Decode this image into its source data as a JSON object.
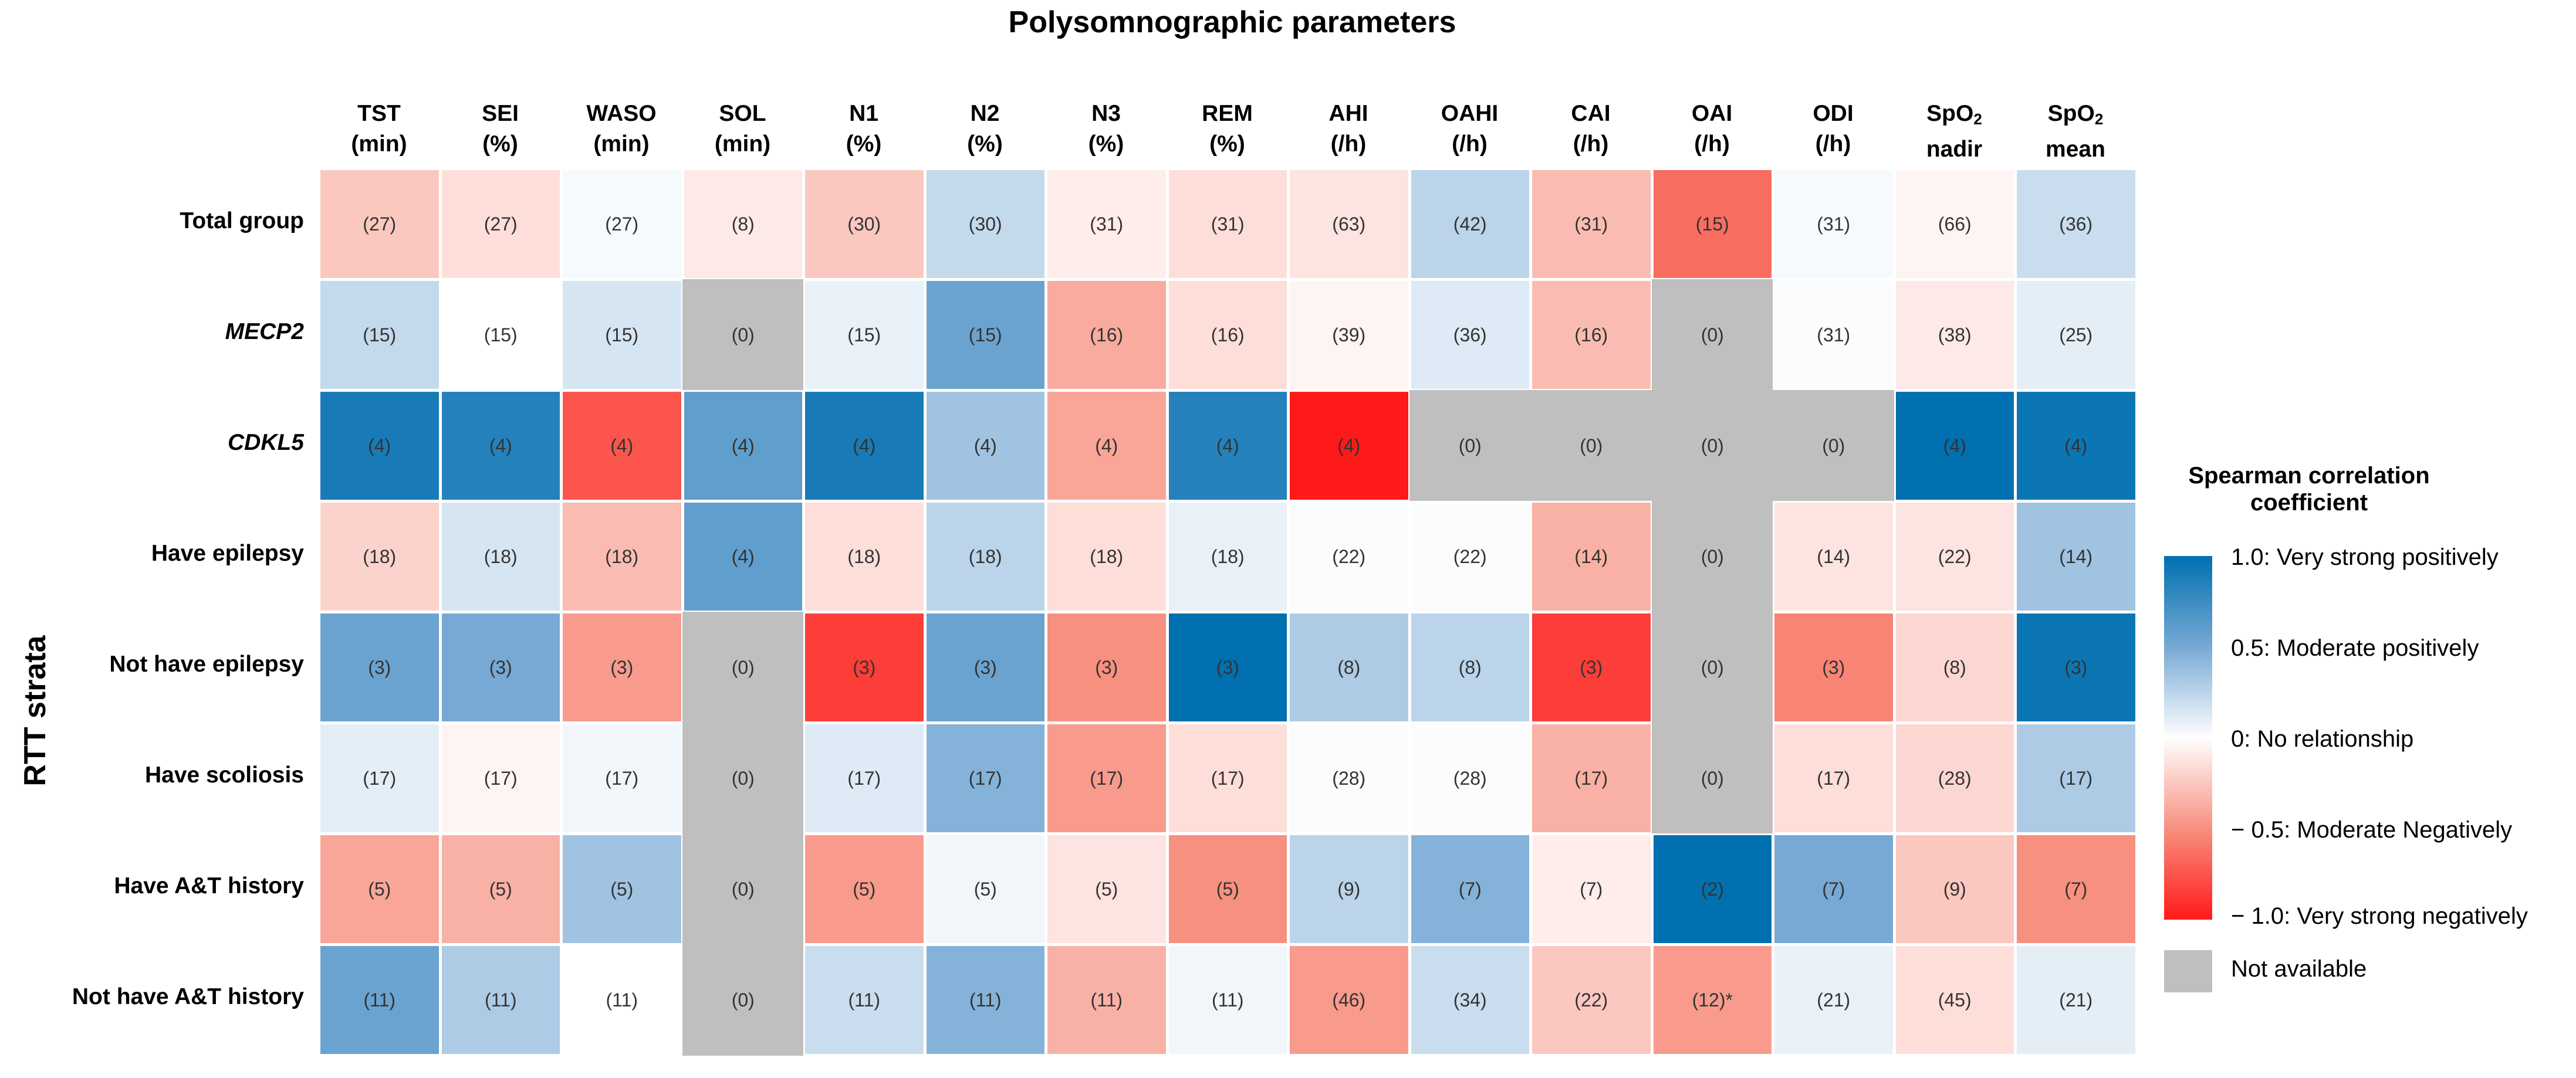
{
  "chart_data": {
    "type": "heatmap",
    "title": "Polysomnographic parameters",
    "ylabel": "RTT strata",
    "columns": [
      {
        "line1": "TST",
        "line2": "(min)"
      },
      {
        "line1": "SEI",
        "line2": "(%)"
      },
      {
        "line1": "WASO",
        "line2": "(min)"
      },
      {
        "line1": "SOL",
        "line2": "(min)"
      },
      {
        "line1": "N1",
        "line2": "(%)"
      },
      {
        "line1": "N2",
        "line2": "(%)"
      },
      {
        "line1": "N3",
        "line2": "(%)"
      },
      {
        "line1": "REM",
        "line2": "(%)"
      },
      {
        "line1": "AHI",
        "line2": "(/h)"
      },
      {
        "line1": "OAHI",
        "line2": "(/h)"
      },
      {
        "line1": "CAI",
        "line2": "(/h)"
      },
      {
        "line1": "OAI",
        "line2": "(/h)"
      },
      {
        "line1": "ODI",
        "line2": "(/h)"
      },
      {
        "line1": "SpO",
        "sub": "2",
        "line2": "nadir"
      },
      {
        "line1": "SpO",
        "sub": "2",
        "line2": "mean"
      }
    ],
    "rows": [
      {
        "label": "Total group",
        "italic": false
      },
      {
        "label": "MECP2",
        "italic": true
      },
      {
        "label": "CDKL5",
        "italic": true
      },
      {
        "label": "Have epilepsy",
        "italic": false
      },
      {
        "label": "Not have epilepsy",
        "italic": false
      },
      {
        "label": "Have scoliosis",
        "italic": false
      },
      {
        "label": "Have A&T history",
        "italic": false
      },
      {
        "label": "Not have A&T history",
        "italic": false
      }
    ],
    "values": [
      [
        -0.25,
        -0.15,
        0.03,
        -0.1,
        -0.25,
        0.22,
        -0.08,
        -0.15,
        -0.12,
        0.25,
        -0.3,
        -0.65,
        0.03,
        -0.05,
        0.2
      ],
      [
        0.22,
        0.0,
        0.15,
        null,
        0.08,
        0.55,
        -0.38,
        -0.15,
        -0.05,
        0.12,
        -0.3,
        null,
        0.02,
        -0.1,
        0.1
      ],
      [
        0.9,
        0.85,
        -0.75,
        0.6,
        0.9,
        0.35,
        -0.4,
        0.85,
        -1.0,
        null,
        null,
        null,
        null,
        1.0,
        0.95
      ],
      [
        -0.2,
        0.15,
        -0.3,
        0.6,
        -0.15,
        0.25,
        -0.15,
        0.08,
        0.02,
        0.02,
        -0.35,
        null,
        -0.12,
        -0.12,
        0.35
      ],
      [
        0.55,
        0.5,
        -0.45,
        null,
        -0.85,
        0.55,
        -0.5,
        1.0,
        0.3,
        0.25,
        -0.85,
        null,
        -0.55,
        -0.18,
        0.95
      ],
      [
        0.1,
        -0.05,
        0.05,
        null,
        0.12,
        0.45,
        -0.45,
        -0.15,
        0.02,
        0.02,
        -0.35,
        null,
        -0.15,
        -0.18,
        0.3
      ],
      [
        -0.4,
        -0.35,
        0.35,
        null,
        -0.45,
        0.05,
        -0.12,
        -0.5,
        0.25,
        0.45,
        -0.08,
        1.0,
        0.5,
        -0.25,
        -0.5
      ],
      [
        0.55,
        0.3,
        0.0,
        null,
        0.2,
        0.45,
        -0.35,
        0.05,
        -0.45,
        0.2,
        -0.25,
        -0.45,
        0.08,
        -0.15,
        0.1
      ]
    ],
    "cell_labels": [
      [
        "(27)",
        "(27)",
        "(27)",
        "(8)",
        "(30)",
        "(30)",
        "(31)",
        "(31)",
        "(63)",
        "(42)",
        "(31)",
        "(15)",
        "(31)",
        "(66)",
        "(36)"
      ],
      [
        "(15)",
        "(15)",
        "(15)",
        "(0)",
        "(15)",
        "(15)",
        "(16)",
        "(16)",
        "(39)",
        "(36)",
        "(16)",
        "(0)",
        "(31)",
        "(38)",
        "(25)"
      ],
      [
        "(4)",
        "(4)",
        "(4)",
        "(4)",
        "(4)",
        "(4)",
        "(4)",
        "(4)",
        "(4)",
        "(0)",
        "(0)",
        "(0)",
        "(0)",
        "(4)",
        "(4)"
      ],
      [
        "(18)",
        "(18)",
        "(18)",
        "(4)",
        "(18)",
        "(18)",
        "(18)",
        "(18)",
        "(22)",
        "(22)",
        "(14)",
        "(0)",
        "(14)",
        "(22)",
        "(14)"
      ],
      [
        "(3)",
        "(3)",
        "(3)",
        "(0)",
        "(3)",
        "(3)",
        "(3)",
        "(3)",
        "(8)",
        "(8)",
        "(3)",
        "(0)",
        "(3)",
        "(8)",
        "(3)"
      ],
      [
        "(17)",
        "(17)",
        "(17)",
        "(0)",
        "(17)",
        "(17)",
        "(17)",
        "(17)",
        "(28)",
        "(28)",
        "(17)",
        "(0)",
        "(17)",
        "(28)",
        "(17)"
      ],
      [
        "(5)",
        "(5)",
        "(5)",
        "(0)",
        "(5)",
        "(5)",
        "(5)",
        "(5)",
        "(9)",
        "(7)",
        "(7)",
        "(2)",
        "(7)",
        "(9)",
        "(7)"
      ],
      [
        "(11)",
        "(11)",
        "(11)",
        "(0)",
        "(11)",
        "(11)",
        "(11)",
        "(11)",
        "(46)",
        "(34)",
        "(22)",
        "(12)*",
        "(21)",
        "(45)",
        "(21)"
      ]
    ],
    "value_range": [
      -1.0,
      1.0
    ],
    "legend": {
      "title_line1": "Spearman correlation",
      "title_line2": "coefficient",
      "placement": "right",
      "labels": [
        "1.0: Very strong positively",
        "0.5: Moderate positively",
        "0:  No relationship",
        "− 0.5: Moderate Negatively",
        "− 1.0: Very strong negatively"
      ],
      "na_label": "Not available"
    },
    "colors": {
      "strong_positive": "#0070b0",
      "moderate_positive": "#77a9d4",
      "neutral": "#ffffff",
      "moderate_negative": "#f7907f",
      "strong_negative": "#ff1a1a",
      "not_available": "#bfbfbf"
    }
  }
}
